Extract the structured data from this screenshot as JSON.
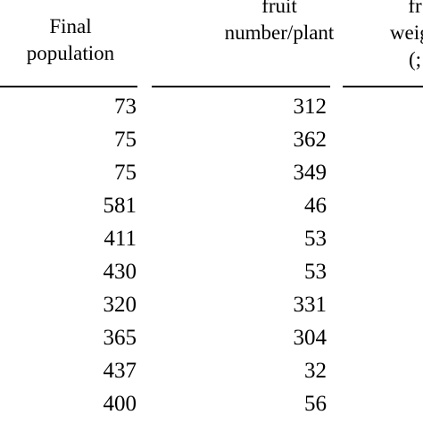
{
  "table": {
    "headers": {
      "final_population": [
        "Final",
        "population"
      ],
      "fruit_number": [
        "fruit",
        "number/plant"
      ],
      "fruit_weight": [
        "fr",
        "weigh",
        "(;"
      ]
    },
    "columns": [
      "Final population",
      "fruit number/plant"
    ],
    "rows": [
      {
        "final_population": "73",
        "fruit_number": "312"
      },
      {
        "final_population": "75",
        "fruit_number": "362"
      },
      {
        "final_population": "75",
        "fruit_number": "349"
      },
      {
        "final_population": "581",
        "fruit_number": "46"
      },
      {
        "final_population": "411",
        "fruit_number": "53"
      },
      {
        "final_population": "430",
        "fruit_number": "53"
      },
      {
        "final_population": "320",
        "fruit_number": "331"
      },
      {
        "final_population": "365",
        "fruit_number": "304"
      },
      {
        "final_population": "437",
        "fruit_number": "32"
      },
      {
        "final_population": "400",
        "fruit_number": "56"
      }
    ]
  }
}
